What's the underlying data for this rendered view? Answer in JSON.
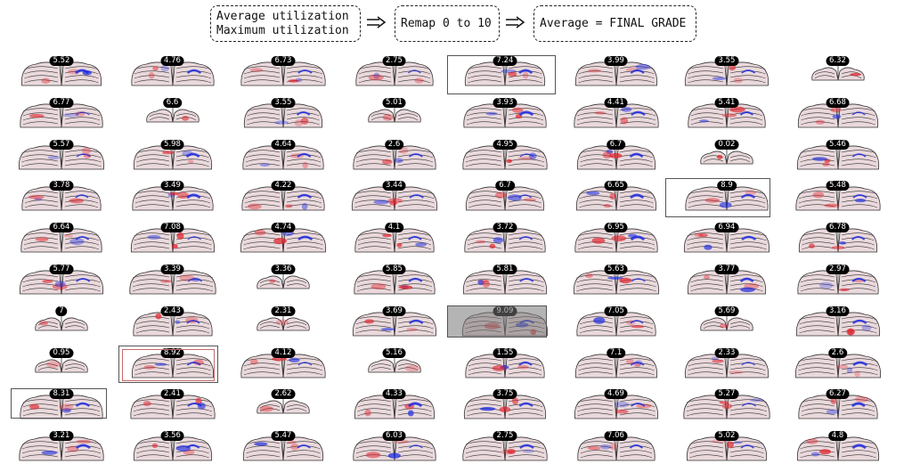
{
  "pipeline": {
    "step1_line1": "Average utilization",
    "step1_line2": "Maximum utilization",
    "step2": "Remap 0 to 10",
    "step3": "Average = FINAL GRADE",
    "arrow_icon": "double-arrow-right-icon"
  },
  "colors": {
    "outline": "#333333",
    "tissue": "#ead9dc",
    "red": "#e0202a",
    "blue": "#1d2be0",
    "badge_bg": "#000000",
    "badge_text": "#ffffff",
    "highlight_box": "#555555",
    "highlight_box_red": "#c96a6a",
    "highlight_fill": "#777777"
  },
  "grid": {
    "columns": [
      [
        "5.52",
        "6.77",
        "5.57",
        "3.78",
        "6.64",
        "5.77",
        "7",
        "0.95",
        "8.31",
        "3.21"
      ],
      [
        "4.76",
        "6.6",
        "5.98",
        "3.49",
        "7.08",
        "3.39",
        "2.43",
        "8.92",
        "2.41",
        "3.56"
      ],
      [
        "6.73",
        "3.55",
        "4.64",
        "4.22",
        "4.74",
        "3.36",
        "2.31",
        "4.12",
        "2.62",
        "5.47"
      ],
      [
        "2.75",
        "5.01",
        "2.6",
        "3.44",
        "4.1",
        "5.85",
        "3.69",
        "5.16",
        "4.33",
        "6.03"
      ],
      [
        "7.24",
        "3.93",
        "4.95",
        "6.7",
        "3.72",
        "5.81",
        "9.09",
        "1.55",
        "3.75",
        "2.75"
      ],
      [
        "3.99",
        "4.41",
        "6.7",
        "6.65",
        "6.95",
        "5.63",
        "7.05",
        "7.1",
        "4.69",
        "7.06"
      ],
      [
        "3.55",
        "5.41",
        "0.02",
        "8.9",
        "6.94",
        "3.77",
        "5.69",
        "2.33",
        "5.27",
        "5.02"
      ],
      [
        "6.32",
        "6.68",
        "5.46",
        "5.48",
        "6.78",
        "2.97",
        "3.16",
        "2.6",
        "6.27",
        "4.8"
      ]
    ]
  }
}
